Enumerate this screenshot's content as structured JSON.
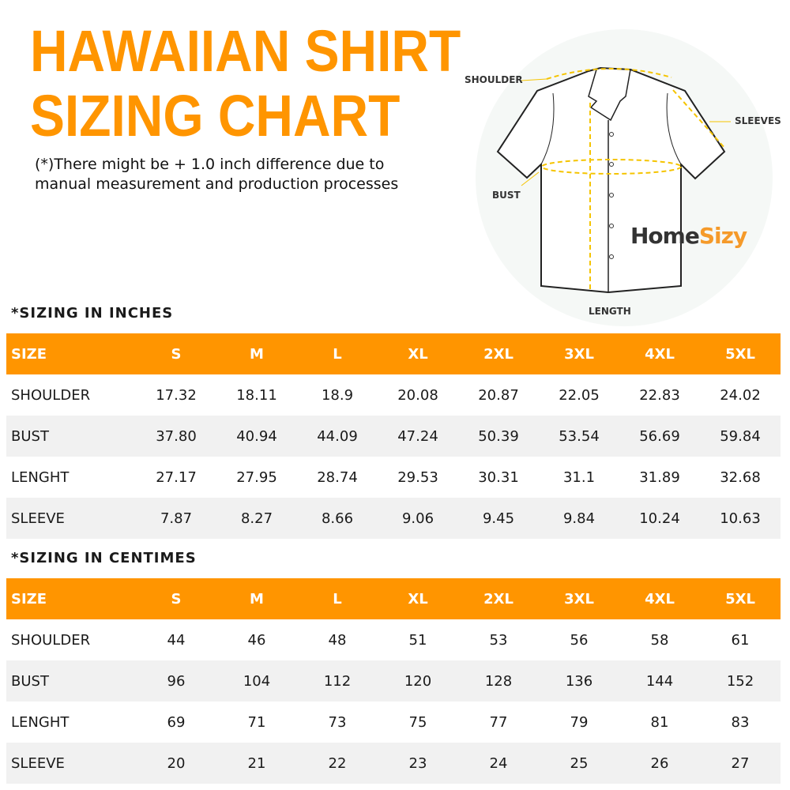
{
  "title_line1": "HAWAIIAN SHIRT",
  "title_line2": "SIZING CHART",
  "note_line1": "(*)There might be + 1.0 inch difference due to",
  "note_line2": "manual measurement and production processes",
  "diagram": {
    "shoulder": "SHOULDER",
    "sleeves": "SLEEVES",
    "bust": "BUST",
    "length": "LENGTH",
    "logo_part1": "Home",
    "logo_part2": "Sizy"
  },
  "colors": {
    "accent": "#ff9500",
    "row_alt": "#f1f1f1",
    "dashed": "#f5c400"
  },
  "inches": {
    "heading": "*SIZING IN INCHES",
    "header": [
      "SIZE",
      "S",
      "M",
      "L",
      "XL",
      "2XL",
      "3XL",
      "4XL",
      "5XL"
    ],
    "rows": [
      [
        "SHOULDER",
        "17.32",
        "18.11",
        "18.9",
        "20.08",
        "20.87",
        "22.05",
        "22.83",
        "24.02"
      ],
      [
        "BUST",
        "37.80",
        "40.94",
        "44.09",
        "47.24",
        "50.39",
        "53.54",
        "56.69",
        "59.84"
      ],
      [
        "LENGHT",
        "27.17",
        "27.95",
        "28.74",
        "29.53",
        "30.31",
        "31.1",
        "31.89",
        "32.68"
      ],
      [
        "SLEEVE",
        "7.87",
        "8.27",
        "8.66",
        "9.06",
        "9.45",
        "9.84",
        "10.24",
        "10.63"
      ]
    ]
  },
  "cm": {
    "heading": "*SIZING IN CENTIMES",
    "header": [
      "SIZE",
      "S",
      "M",
      "L",
      "XL",
      "2XL",
      "3XL",
      "4XL",
      "5XL"
    ],
    "rows": [
      [
        "SHOULDER",
        "44",
        "46",
        "48",
        "51",
        "53",
        "56",
        "58",
        "61"
      ],
      [
        "BUST",
        "96",
        "104",
        "112",
        "120",
        "128",
        "136",
        "144",
        "152"
      ],
      [
        "LENGHT",
        "69",
        "71",
        "73",
        "75",
        "77",
        "79",
        "81",
        "83"
      ],
      [
        "SLEEVE",
        "20",
        "21",
        "22",
        "23",
        "24",
        "25",
        "26",
        "27"
      ]
    ]
  }
}
